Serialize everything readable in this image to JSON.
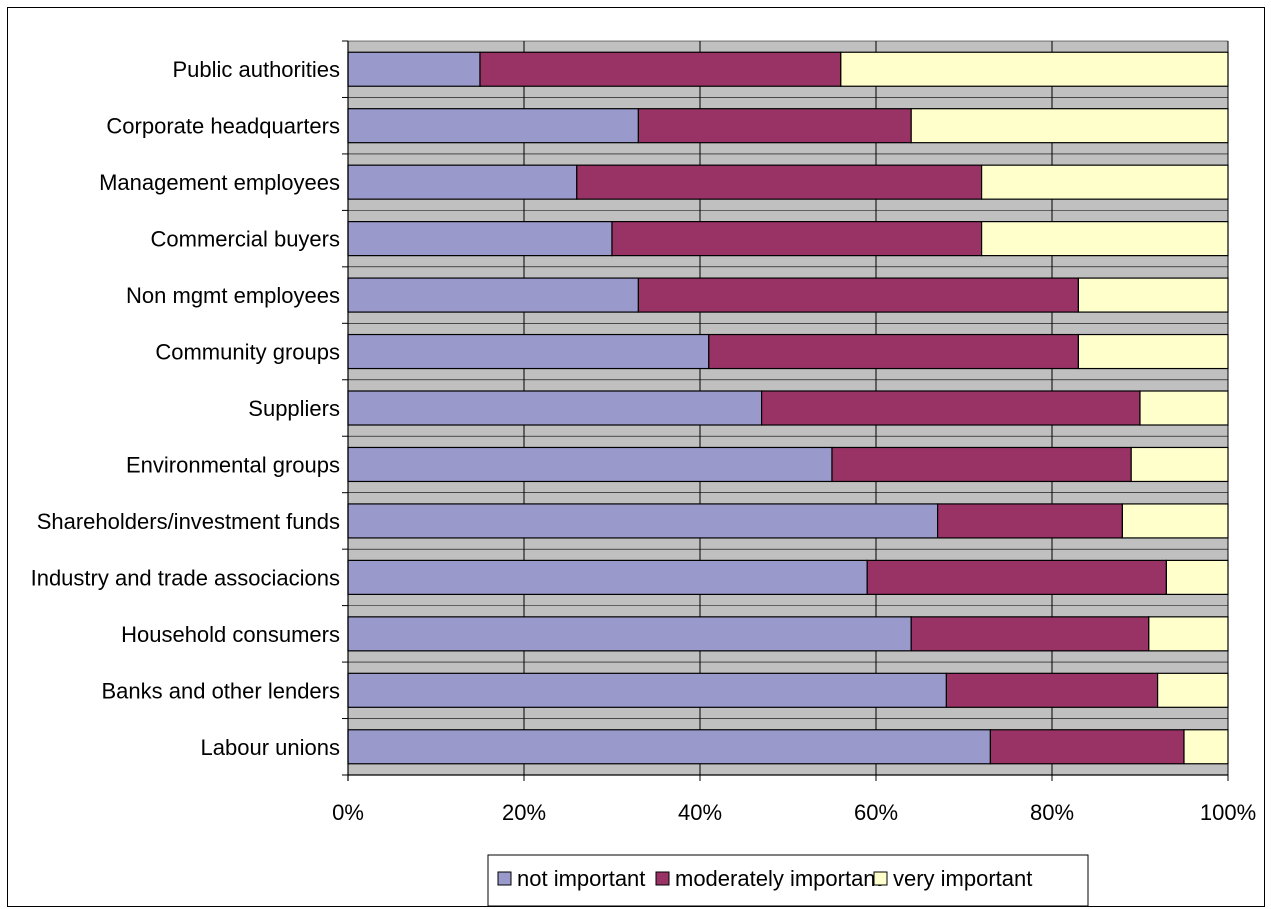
{
  "chart_data": {
    "type": "bar",
    "orientation": "horizontal",
    "stacked": true,
    "percent": true,
    "categories": [
      "Public authorities",
      "Corporate headquarters",
      "Management employees",
      "Commercial buyers",
      "Non mgmt employees",
      "Community groups",
      "Suppliers",
      "Environmental groups",
      "Shareholders/investment funds",
      "Industry and trade associacions",
      "Household consumers",
      "Banks and other lenders",
      "Labour unions"
    ],
    "series": [
      {
        "name": "not important",
        "color": "#9999cc",
        "values": [
          15,
          33,
          26,
          30,
          33,
          41,
          47,
          55,
          67,
          59,
          64,
          68,
          73
        ]
      },
      {
        "name": "moderately important",
        "color": "#993366",
        "values": [
          41,
          31,
          46,
          42,
          50,
          42,
          43,
          34,
          21,
          34,
          27,
          24,
          22
        ]
      },
      {
        "name": "very important",
        "color": "#ffffcc",
        "values": [
          44,
          36,
          28,
          28,
          17,
          17,
          10,
          11,
          12,
          7,
          9,
          8,
          5
        ]
      }
    ],
    "xlim": [
      0,
      100
    ],
    "xticks": [
      "0%",
      "20%",
      "40%",
      "60%",
      "80%",
      "100%"
    ],
    "plot_background": "#c0c0c0",
    "grid": true,
    "legend_position": "bottom",
    "title": "",
    "xlabel": "",
    "ylabel": ""
  }
}
